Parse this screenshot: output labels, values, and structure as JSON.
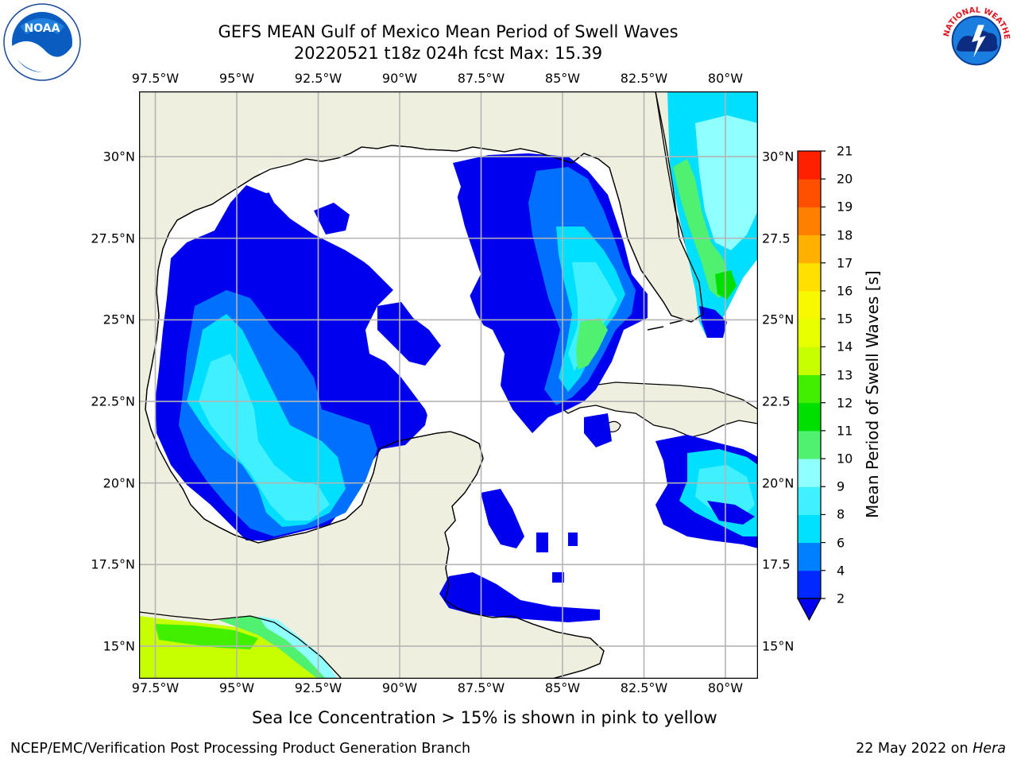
{
  "title": {
    "line1": "GEFS MEAN Gulf of Mexico Mean Period of Swell Waves",
    "line2": "20220521 t18z 024h fcst   Max: 15.39"
  },
  "map": {
    "lon_labels": [
      "97.5°W",
      "95°W",
      "92.5°W",
      "90°W",
      "87.5°W",
      "85°W",
      "82.5°W",
      "80°W"
    ],
    "lat_labels_left": [
      "30°N",
      "27.5°N",
      "25°N",
      "22.5°N",
      "20°N",
      "17.5°N",
      "15°N"
    ],
    "lat_labels_right": [
      "30°N",
      "27.5",
      "25°N",
      "22.5",
      "20°N",
      "17.5",
      "15°N"
    ],
    "extent": {
      "lon": [
        -98,
        -79
      ],
      "lat": [
        14,
        32
      ]
    }
  },
  "colorbar": {
    "label": "Mean Period of Swell Waves [s]",
    "ticks": [
      "2",
      "4",
      "6",
      "8",
      "9",
      "10",
      "11",
      "12",
      "13",
      "14",
      "15",
      "16",
      "17",
      "18",
      "19",
      "20",
      "21"
    ],
    "colors": [
      "#0028ff",
      "#0080ff",
      "#00e0ff",
      "#40f0ff",
      "#90ffff",
      "#50f070",
      "#00e000",
      "#40f000",
      "#c8ff00",
      "#e8ff00",
      "#f8f800",
      "#ffe000",
      "#ffb000",
      "#ff8000",
      "#ff5000",
      "#ff2000"
    ],
    "extend_color": "#0000ee"
  },
  "colors": {
    "land": "#efefdf",
    "ocean_low": "#0000ee",
    "grid": "#b4b4b4"
  },
  "footer": {
    "note": "Sea Ice Concentration > 15% is shown in pink to yellow",
    "left": "NCEP/EMC/Verification Post Processing Product Generation Branch",
    "right_prefix": "22 May 2022 on ",
    "right_host": "Hera"
  },
  "logos": {
    "left": "noaa-logo",
    "left_text": "NOAA",
    "right": "nws-logo",
    "right_text": "NATIONAL WEATHER SERVICE"
  }
}
